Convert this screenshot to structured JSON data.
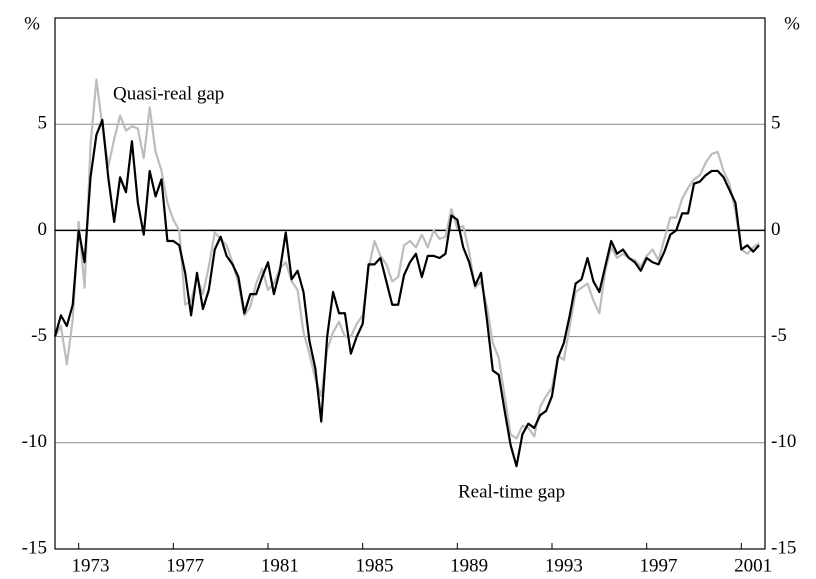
{
  "chart_data": {
    "type": "line",
    "x": [
      1972,
      1972.25,
      1972.5,
      1972.75,
      1973,
      1973.25,
      1973.5,
      1973.75,
      1974,
      1974.25,
      1974.5,
      1974.75,
      1975,
      1975.25,
      1975.5,
      1975.75,
      1976,
      1976.25,
      1976.5,
      1976.75,
      1977,
      1977.25,
      1977.5,
      1977.75,
      1978,
      1978.25,
      1978.5,
      1978.75,
      1979,
      1979.25,
      1979.5,
      1979.75,
      1980,
      1980.25,
      1980.5,
      1980.75,
      1981,
      1981.25,
      1981.5,
      1981.75,
      1982,
      1982.25,
      1982.5,
      1982.75,
      1983,
      1983.25,
      1983.5,
      1983.75,
      1984,
      1984.25,
      1984.5,
      1984.75,
      1985,
      1985.25,
      1985.5,
      1985.75,
      1986,
      1986.25,
      1986.5,
      1986.75,
      1987,
      1987.25,
      1987.5,
      1987.75,
      1988,
      1988.25,
      1988.5,
      1988.75,
      1989,
      1989.25,
      1989.5,
      1989.75,
      1990,
      1990.25,
      1990.5,
      1990.75,
      1991,
      1991.25,
      1991.5,
      1991.75,
      1992,
      1992.25,
      1992.5,
      1992.75,
      1993,
      1993.25,
      1993.5,
      1993.75,
      1994,
      1994.25,
      1994.5,
      1994.75,
      1995,
      1995.25,
      1995.5,
      1995.75,
      1996,
      1996.25,
      1996.5,
      1996.75,
      1997,
      1997.25,
      1997.5,
      1997.75,
      1998,
      1998.25,
      1998.5,
      1998.75,
      1999,
      1999.25,
      1999.5,
      1999.75,
      2000,
      2000.25,
      2000.5,
      2000.75,
      2001,
      2001.25,
      2001.5,
      2001.75
    ],
    "series": [
      {
        "name": "Quasi-real gap",
        "color": "#bdbdbd",
        "values": [
          -5,
          -4.5,
          -6.3,
          -4.2,
          0.4,
          -2.7,
          4,
          7.1,
          4.9,
          3,
          4.3,
          5.4,
          4.7,
          4.9,
          4.8,
          3.4,
          5.8,
          3.7,
          2.8,
          1.3,
          0.5,
          0,
          -3.5,
          -3.3,
          -2.2,
          -3,
          -1.7,
          -0.1,
          -0.4,
          -0.7,
          -1.5,
          -2.5,
          -4,
          -3.6,
          -2.5,
          -1.8,
          -2.8,
          -2.5,
          -1.8,
          -1.5,
          -2.4,
          -2.8,
          -4.8,
          -5.8,
          -7,
          -7.8,
          -5.6,
          -4.8,
          -4.3,
          -5,
          -5,
          -4.4,
          -4,
          -1.8,
          -0.5,
          -1.2,
          -1.6,
          -2.4,
          -2.2,
          -0.7,
          -0.5,
          -0.8,
          -0.2,
          -0.8,
          0,
          -0.4,
          -0.3,
          1,
          0.1,
          0.2,
          -1,
          -2.7,
          -2.4,
          -3.6,
          -5.3,
          -6,
          -7.8,
          -9.6,
          -9.8,
          -9.2,
          -9.3,
          -9.7,
          -8.3,
          -7.8,
          -7.4,
          -5.9,
          -6.1,
          -4.5,
          -2.9,
          -2.7,
          -2.5,
          -3.3,
          -3.9,
          -1.9,
          -0.8,
          -1.3,
          -1.1,
          -1.3,
          -1.4,
          -1.7,
          -1.2,
          -0.9,
          -1.4,
          -0.4,
          0.6,
          0.6,
          1.5,
          2,
          2.4,
          2.6,
          3.2,
          3.6,
          3.7,
          2.8,
          2.2,
          0.9,
          -0.9,
          -1.1,
          -0.8,
          -0.6
        ]
      },
      {
        "name": "Real-time gap",
        "color": "#000000",
        "values": [
          -5,
          -4,
          -4.5,
          -3.5,
          0,
          -1.5,
          2.5,
          4.5,
          5.2,
          2.5,
          0.4,
          2.5,
          1.8,
          4.2,
          1.3,
          -0.2,
          2.8,
          1.6,
          2.4,
          -0.5,
          -0.5,
          -0.7,
          -2,
          -4,
          -2,
          -3.7,
          -2.8,
          -0.9,
          -0.3,
          -1.2,
          -1.6,
          -2.2,
          -3.9,
          -3,
          -3,
          -2.2,
          -1.5,
          -3,
          -1.9,
          -0.1,
          -2.3,
          -1.9,
          -2.9,
          -5.2,
          -6.5,
          -9,
          -5,
          -2.9,
          -3.9,
          -3.9,
          -5.8,
          -5,
          -4.4,
          -1.6,
          -1.6,
          -1.3,
          -2.4,
          -3.5,
          -3.5,
          -2.1,
          -1.5,
          -1.1,
          -2.2,
          -1.2,
          -1.2,
          -1.3,
          -1.1,
          0.7,
          0.5,
          -0.8,
          -1.5,
          -2.6,
          -2,
          -4.2,
          -6.6,
          -6.8,
          -8.5,
          -10.1,
          -11.1,
          -9.6,
          -9.1,
          -9.3,
          -8.7,
          -8.5,
          -7.8,
          -6,
          -5.3,
          -4,
          -2.5,
          -2.3,
          -1.3,
          -2.4,
          -2.9,
          -1.7,
          -0.5,
          -1.1,
          -0.9,
          -1.3,
          -1.5,
          -1.9,
          -1.3,
          -1.5,
          -1.6,
          -1,
          -0.2,
          0,
          0.8,
          0.8,
          2.2,
          2.3,
          2.6,
          2.8,
          2.8,
          2.5,
          1.9,
          1.3,
          -0.9,
          -0.7,
          -1,
          -0.7
        ]
      }
    ],
    "xlim": [
      1972,
      2002
    ],
    "xticks": [
      1973,
      1977,
      1981,
      1985,
      1989,
      1993,
      1997,
      2001
    ],
    "ylim": [
      -15,
      10
    ],
    "yticks": [
      -15,
      -10,
      -5,
      0,
      5
    ],
    "y2lim": [
      -15,
      10
    ],
    "y2ticks": [
      -15,
      -10,
      -5,
      0,
      5
    ],
    "y_label": "%",
    "y2_label": "%",
    "grid": true
  }
}
